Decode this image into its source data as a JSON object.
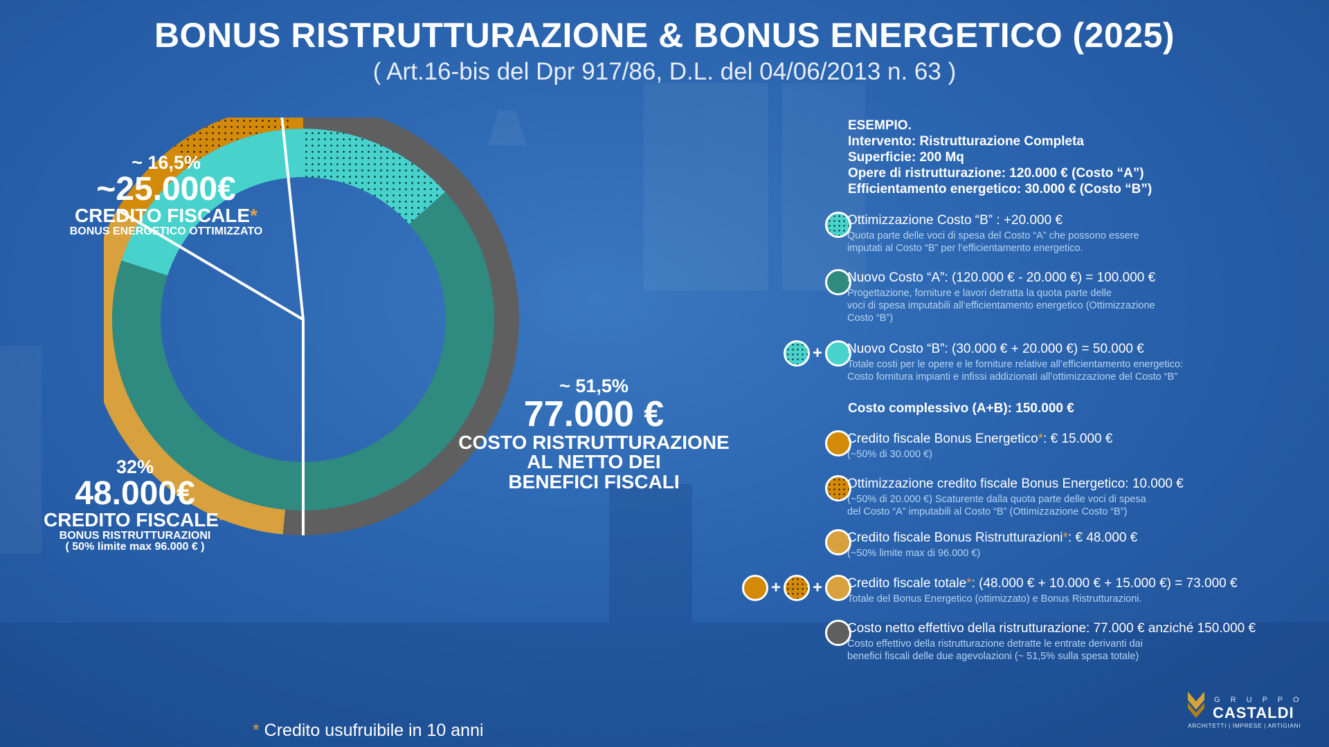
{
  "header": {
    "title": "BONUS RISTRUTTURAZIONE & BONUS ENERGETICO (2025)",
    "subtitle": "( Art.16-bis del Dpr 917/86, D.L. del 04/06/2013 n. 63 )"
  },
  "chart_data": {
    "type": "pie",
    "outer_ring": [
      {
        "name": "Costo ristrutturazione al netto dei benefici fiscali",
        "value": 77000,
        "pct": 51.5,
        "color": "#5f5f5f"
      },
      {
        "name": "Credito fiscale Bonus Ristrutturazioni",
        "value": 48000,
        "pct": 32,
        "color": "#d9a13d"
      },
      {
        "name": "Credito fiscale Bonus Energetico ottimizzato",
        "value": 25000,
        "pct": 16.5,
        "color": "#d38a08"
      }
    ],
    "inner_ring": [
      {
        "name": "Ottimizzazione Costo B",
        "value": 20000,
        "color": "#48d2cc",
        "dotted": true
      },
      {
        "name": "Nuovo Costo A",
        "value": 100000,
        "color": "#2f8a80"
      },
      {
        "name": "Costo B",
        "value": 30000,
        "color": "#48d2cc"
      }
    ],
    "inner_separator_value": 76500,
    "labels": {
      "energetico": {
        "pct": "~ 16,5%",
        "amount": "~25.000€",
        "caption": "CREDITO FISCALE",
        "sub": "BONUS ENERGETICO OTTIMIZZATO"
      },
      "ristrutturazioni": {
        "pct": "32%",
        "amount": "48.000€",
        "caption": "CREDITO FISCALE",
        "sub": "BONUS RISTRUTTURAZIONI",
        "sub2": "( 50% limite max 96.000 € )"
      },
      "netto": {
        "pct": "~ 51,5%",
        "amount": "77.000 €",
        "l1": "COSTO RISTRUTTURAZIONE",
        "l2": "AL NETTO DEI",
        "l3": "BENEFICI FISCALI"
      }
    },
    "asterisk": "*"
  },
  "example": {
    "l1": "ESEMPIO.",
    "l2": "Intervento: Ristrutturazione Completa",
    "l3": "Superficie: 200 Mq",
    "l4": "Opere di ristrutturazione: 120.000 € (Costo “A”)",
    "l5": "Efficientamento energetico: 30.000 € (Costo “B”)"
  },
  "legend": {
    "r1": {
      "title": "Ottimizzazione Costo “B” : +20.000 €",
      "desc": [
        "Quota parte delle  voci di spesa del Costo “A” che possono essere",
        "imputati al Costo “B” per l’efficientamento energetico."
      ]
    },
    "r2": {
      "title": "Nuovo Costo “A”: (120.000 € - 20.000 €) = 100.000 €",
      "desc": [
        "Progettazione,  forniture e lavori detratta la quota parte delle",
        "voci di spesa imputabili all’efficientamento energetico (Ottimizzazione",
        "Costo “B”)"
      ]
    },
    "r3": {
      "title": "Nuovo Costo “B”: (30.000 € + 20.000 €) = 50.000 €",
      "desc": [
        "Totale costi per le opere e le forniture relative all’efficientamento energetico:",
        "Costo fornitura impianti e infissi addizionati all’ottimizzazione del Costo “B”"
      ]
    },
    "total": "Costo complessivo (A+B): 150.000 €",
    "r4": {
      "pre": "Credito fiscale Bonus Energetico",
      "post": ": € 15.000 €",
      "desc": [
        "(~50% di 30.000 €)"
      ]
    },
    "r5": {
      "title": "Ottimizzazione credito fiscale Bonus Energetico:  10.000 €",
      "desc": [
        "(~50% di 20.000 €) Scaturente dalla quota parte delle voci di spesa",
        "del Costo “A” imputabili al Costo “B” (Ottimizzazione Costo “B”)"
      ]
    },
    "r6": {
      "pre": "Credito fiscale Bonus Ristrutturazioni",
      "post": ": € 48.000 €",
      "desc": [
        "(~50% limite max di 96.000 €)"
      ]
    },
    "r7": {
      "pre": "Credito fiscale totale",
      "post": ": (48.000 € + 10.000 € + 15.000 €) = 73.000 €",
      "desc": [
        "Totale del Bonus Energetico (ottimizzato) e Bonus Ristrutturazioni."
      ]
    },
    "r8": {
      "title": "Costo netto effettivo della ristrutturazione:  77.000 € anziché 150.000 €",
      "desc": [
        "Costo effettivo della ristrutturazione detratte le entrate derivanti dai",
        "benefici fiscali delle due agevolazioni (~ 51,5% sulla spesa totale)"
      ]
    },
    "plus": "+"
  },
  "footer": {
    "asterisk": "*",
    "text": " Credito usufruibile in 10 anni"
  },
  "logo": {
    "top": "G R U P P O",
    "name": "CASTALDI",
    "tagline": "ARCHITETTI | IMPRESE | ARTIGIANI"
  }
}
